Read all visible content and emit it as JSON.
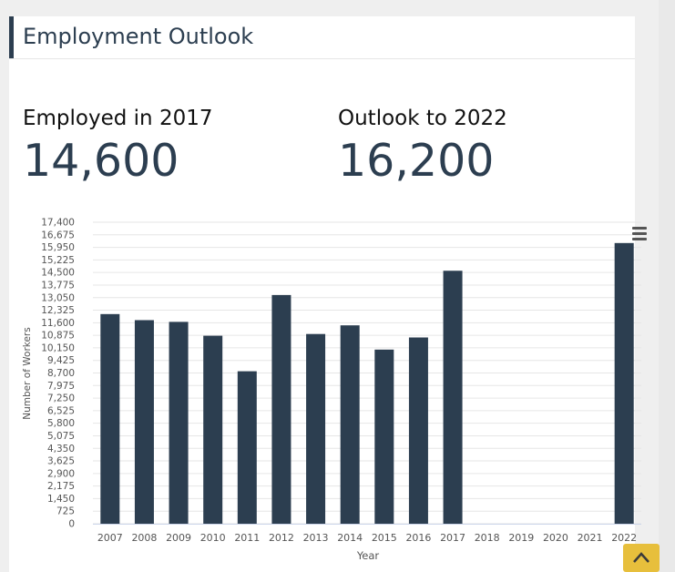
{
  "header": {
    "title": "Employment Outlook"
  },
  "stats": {
    "employed_label": "Employed in 2017",
    "employed_value": "14,600",
    "outlook_label": "Outlook to 2022",
    "outlook_value": "16,200"
  },
  "colors": {
    "bar": "#2c3e50",
    "accent": "#2c3e50",
    "scroll_top": "#e7bf3c"
  },
  "icons": {
    "menu": "hamburger-menu-icon",
    "scroll_top": "chevron-up-icon"
  },
  "chart_data": {
    "type": "bar",
    "categories": [
      "2007",
      "2008",
      "2009",
      "2010",
      "2011",
      "2012",
      "2013",
      "2014",
      "2015",
      "2016",
      "2017",
      "2018",
      "2019",
      "2020",
      "2021",
      "2022"
    ],
    "values": [
      12100,
      11750,
      11650,
      10850,
      8800,
      13200,
      10950,
      11450,
      10050,
      10750,
      14600,
      null,
      null,
      null,
      null,
      16200
    ],
    "xlabel": "Year",
    "ylabel": "Number of Workers",
    "ylim": [
      0,
      17400
    ],
    "yticks": [
      "17,400",
      "16,675",
      "15,950",
      "15,225",
      "14,500",
      "13,775",
      "13,050",
      "12,325",
      "11,600",
      "10,875",
      "10,150",
      "9,425",
      "8,700",
      "7,975",
      "7,250",
      "6,525",
      "5,800",
      "5,075",
      "4,350",
      "3,625",
      "2,900",
      "2,175",
      "1,450",
      "725",
      "0"
    ],
    "grid": true,
    "legend": "none"
  }
}
